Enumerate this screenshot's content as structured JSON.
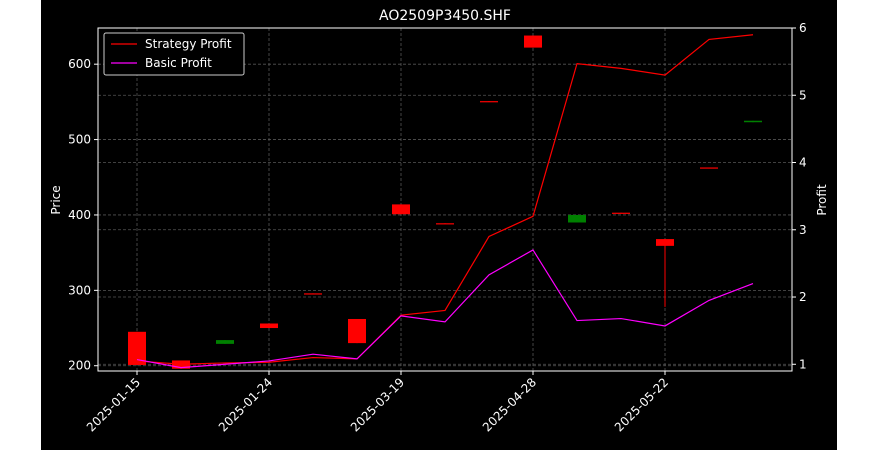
{
  "chart_data": {
    "type": "candlestick+line",
    "title": "AO2509P3450.SHF",
    "ylabel_left": "Price",
    "ylabel_right": "Profit",
    "ylim_left": [
      193,
      648
    ],
    "ylim_right": [
      0.9,
      6.0
    ],
    "yticks_left": [
      "200",
      "300",
      "400",
      "500",
      "600"
    ],
    "yticks_right": [
      "1",
      "2",
      "3",
      "4",
      "5",
      "6"
    ],
    "xticks": [
      "2025-01-15",
      "2025-01-24",
      "2025-03-19",
      "2025-04-28",
      "2025-05-22"
    ],
    "xtick_index": [
      0,
      3,
      6,
      9,
      12
    ],
    "grid": true,
    "legend_position": "upper-left",
    "colors": {
      "up": "#008000",
      "down": "#ff0000",
      "strategy": "#ff0000",
      "basic": "#ff00ff"
    },
    "candles": [
      {
        "open": 245,
        "high": 245,
        "low": 201,
        "close": 201
      },
      {
        "open": 207,
        "high": 207,
        "low": 196,
        "close": 196
      },
      {
        "open": 229,
        "high": 234,
        "low": 229,
        "close": 234
      },
      {
        "open": 256,
        "high": 256,
        "low": 250,
        "close": 250
      },
      {
        "open": 296,
        "high": 296,
        "low": 295,
        "close": 295
      },
      {
        "open": 262,
        "high": 262,
        "low": 230,
        "close": 230
      },
      {
        "open": 414,
        "high": 414,
        "low": 401,
        "close": 401
      },
      {
        "open": 389,
        "high": 389,
        "low": 388,
        "close": 388
      },
      {
        "open": 551,
        "high": 551,
        "low": 550,
        "close": 550
      },
      {
        "open": 638,
        "high": 638,
        "low": 622,
        "close": 622
      },
      {
        "open": 390,
        "high": 400,
        "low": 390,
        "close": 400
      },
      {
        "open": 403,
        "high": 403,
        "low": 402,
        "close": 402
      },
      {
        "open": 368,
        "high": 368,
        "low": 278,
        "close": 359
      },
      {
        "open": 463,
        "high": 463,
        "low": 462,
        "close": 462
      },
      {
        "open": 523,
        "high": 525,
        "low": 523,
        "close": 525
      }
    ],
    "series": [
      {
        "name": "Strategy Profit",
        "values": [
          1.05,
          1.0,
          1.02,
          1.03,
          1.1,
          1.08,
          1.73,
          1.8,
          2.9,
          3.2,
          5.47,
          5.4,
          5.3,
          5.83,
          5.9
        ]
      },
      {
        "name": "Basic Profit",
        "values": [
          1.07,
          0.95,
          1.0,
          1.05,
          1.15,
          1.08,
          1.72,
          1.63,
          2.33,
          2.7,
          1.65,
          1.68,
          1.57,
          1.95,
          2.2
        ]
      }
    ]
  }
}
